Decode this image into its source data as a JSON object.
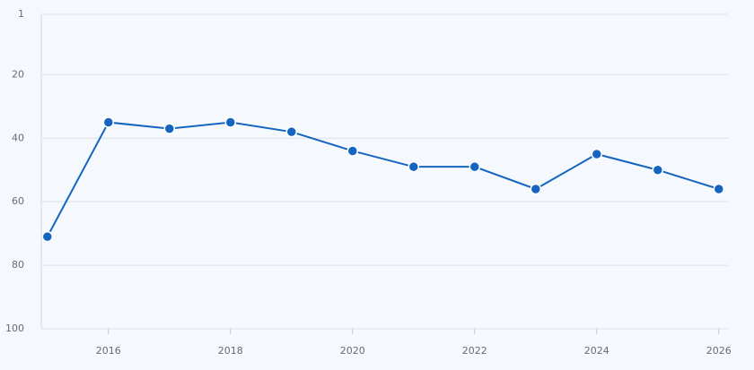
{
  "chart_data": {
    "type": "line",
    "x": [
      2015,
      2016,
      2017,
      2018,
      2019,
      2020,
      2021,
      2022,
      2023,
      2024,
      2025,
      2026
    ],
    "series": [
      {
        "color": "#1565c0",
        "values": [
          71,
          35,
          37,
          35,
          38,
          44,
          49,
          49,
          56,
          45,
          50,
          56
        ]
      }
    ],
    "xlim": [
      2014.9,
      2026.15
    ],
    "xticks": [
      2016,
      2018,
      2020,
      2022,
      2024,
      2026
    ],
    "ylim": [
      1,
      100
    ],
    "yticks": [
      1,
      20,
      40,
      60,
      80,
      100
    ],
    "y_inverted": true,
    "grid": true
  }
}
